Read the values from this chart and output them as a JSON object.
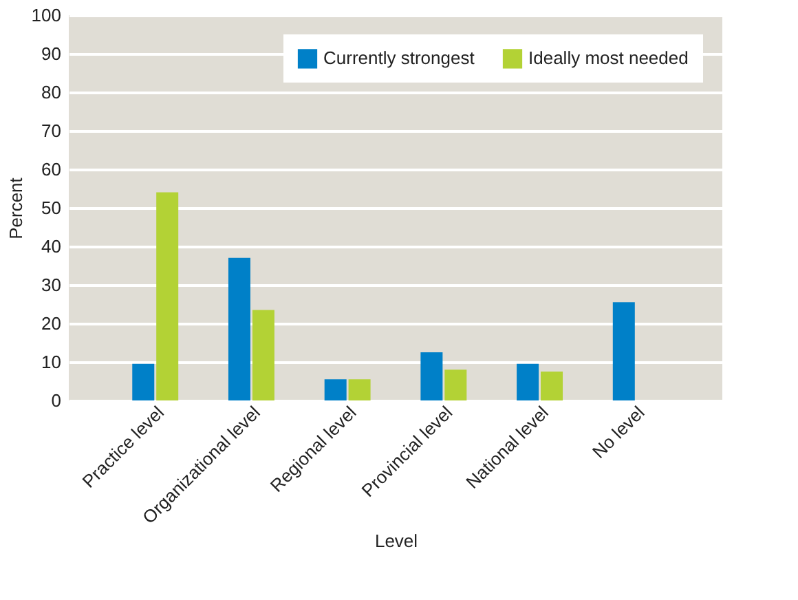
{
  "chart_data": {
    "type": "bar",
    "xlabel": "Level",
    "ylabel": "Percent",
    "categories": [
      "Practice level",
      "Organizational level",
      "Regional level",
      "Provincial level",
      "National level",
      "No level"
    ],
    "series": [
      {
        "name": "Currently strongest",
        "color": "#0080c8",
        "values": [
          9.5,
          37,
          5.5,
          12.5,
          9.5,
          25.5
        ]
      },
      {
        "name": "Ideally most needed",
        "color": "#b3d235",
        "values": [
          54,
          23.5,
          5.5,
          8,
          7.5,
          null
        ]
      }
    ],
    "ylim": [
      0,
      100
    ],
    "yticks": [
      0,
      10,
      20,
      30,
      40,
      50,
      60,
      70,
      80,
      90,
      100
    ],
    "grid": "y",
    "legend": "top right"
  }
}
